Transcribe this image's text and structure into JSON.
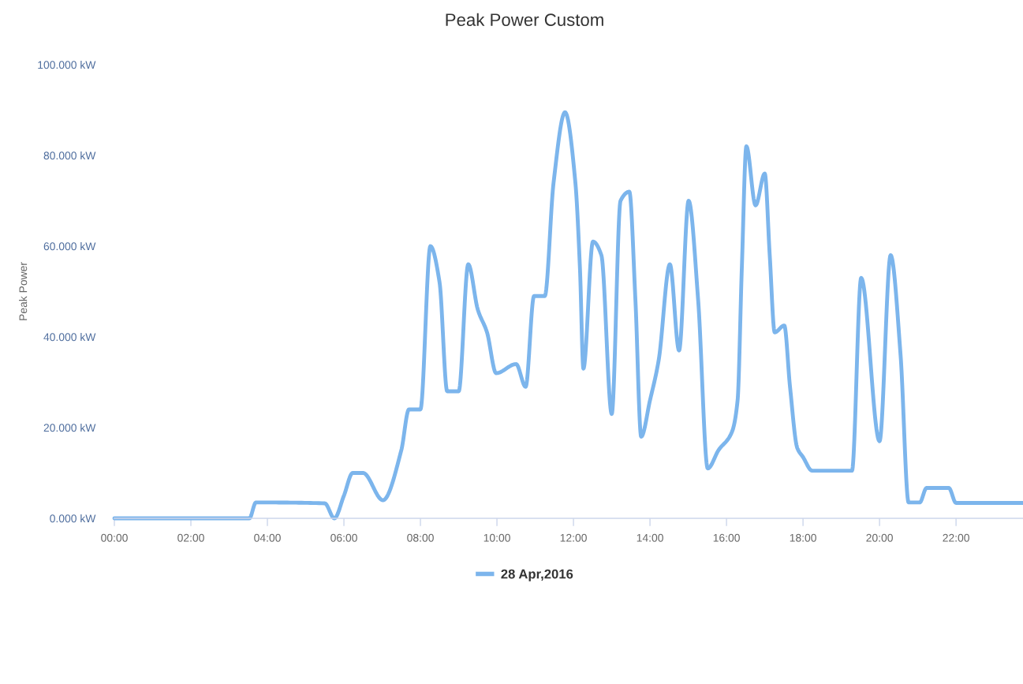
{
  "chart_data": {
    "type": "line",
    "title": "Peak Power Custom",
    "ylabel": "Peak Power",
    "x": [
      0,
      3.53,
      3.7,
      5.5,
      5.75,
      6.0,
      6.23,
      6.5,
      7.02,
      7.5,
      7.7,
      8.0,
      8.26,
      8.5,
      8.7,
      9.0,
      9.25,
      9.5,
      9.74,
      9.98,
      10.5,
      10.75,
      10.97,
      11.25,
      11.48,
      11.78,
      12.05,
      12.17,
      12.26,
      12.51,
      12.73,
      13.0,
      13.23,
      13.46,
      13.62,
      13.77,
      14.0,
      14.23,
      14.52,
      14.76,
      15.01,
      15.26,
      15.51,
      15.79,
      16.14,
      16.29,
      16.4,
      16.52,
      16.76,
      17.0,
      17.13,
      17.26,
      17.51,
      17.66,
      17.85,
      18.0,
      18.24,
      19.28,
      19.52,
      20.0,
      20.29,
      20.55,
      20.76,
      21.05,
      21.23,
      21.81,
      22.0,
      23.75
    ],
    "series": [
      {
        "name": "28 Apr,2016",
        "color": "#7cb5ec",
        "values": [
          0,
          0,
          3.5,
          3.3,
          0,
          5,
          10,
          10,
          4,
          15,
          24,
          24,
          60,
          52,
          28,
          28,
          56,
          46,
          41,
          32,
          34,
          29,
          49,
          49,
          74,
          89.5,
          74,
          55,
          33,
          61,
          58,
          23,
          70,
          72,
          48,
          18,
          26,
          35,
          56,
          37,
          70,
          48,
          11,
          15,
          19,
          26,
          55,
          82,
          69,
          76,
          58,
          41,
          42.5,
          29,
          15.5,
          13.5,
          10.5,
          10.5,
          53,
          17,
          58,
          36,
          3.5,
          3.5,
          6.7,
          6.7,
          3.4,
          3.4
        ]
      }
    ],
    "xlim": [
      0,
      23.75
    ],
    "xticks": [
      {
        "value": 0,
        "label": "00:00"
      },
      {
        "value": 2,
        "label": "02:00"
      },
      {
        "value": 4,
        "label": "04:00"
      },
      {
        "value": 6,
        "label": "06:00"
      },
      {
        "value": 8,
        "label": "08:00"
      },
      {
        "value": 10,
        "label": "10:00"
      },
      {
        "value": 12,
        "label": "12:00"
      },
      {
        "value": 14,
        "label": "14:00"
      },
      {
        "value": 16,
        "label": "16:00"
      },
      {
        "value": 18,
        "label": "18:00"
      },
      {
        "value": 20,
        "label": "20:00"
      },
      {
        "value": 22,
        "label": "22:00"
      }
    ],
    "ylim": [
      0,
      100
    ],
    "yticks": [
      {
        "value": 0,
        "label": "0.000 kW"
      },
      {
        "value": 20,
        "label": "20.000 kW"
      },
      {
        "value": 40,
        "label": "40.000 kW"
      },
      {
        "value": 60,
        "label": "60.000 kW"
      },
      {
        "value": 80,
        "label": "80.000 kW"
      },
      {
        "value": 100,
        "label": "100.000 kW"
      }
    ],
    "legend": "bottom"
  }
}
